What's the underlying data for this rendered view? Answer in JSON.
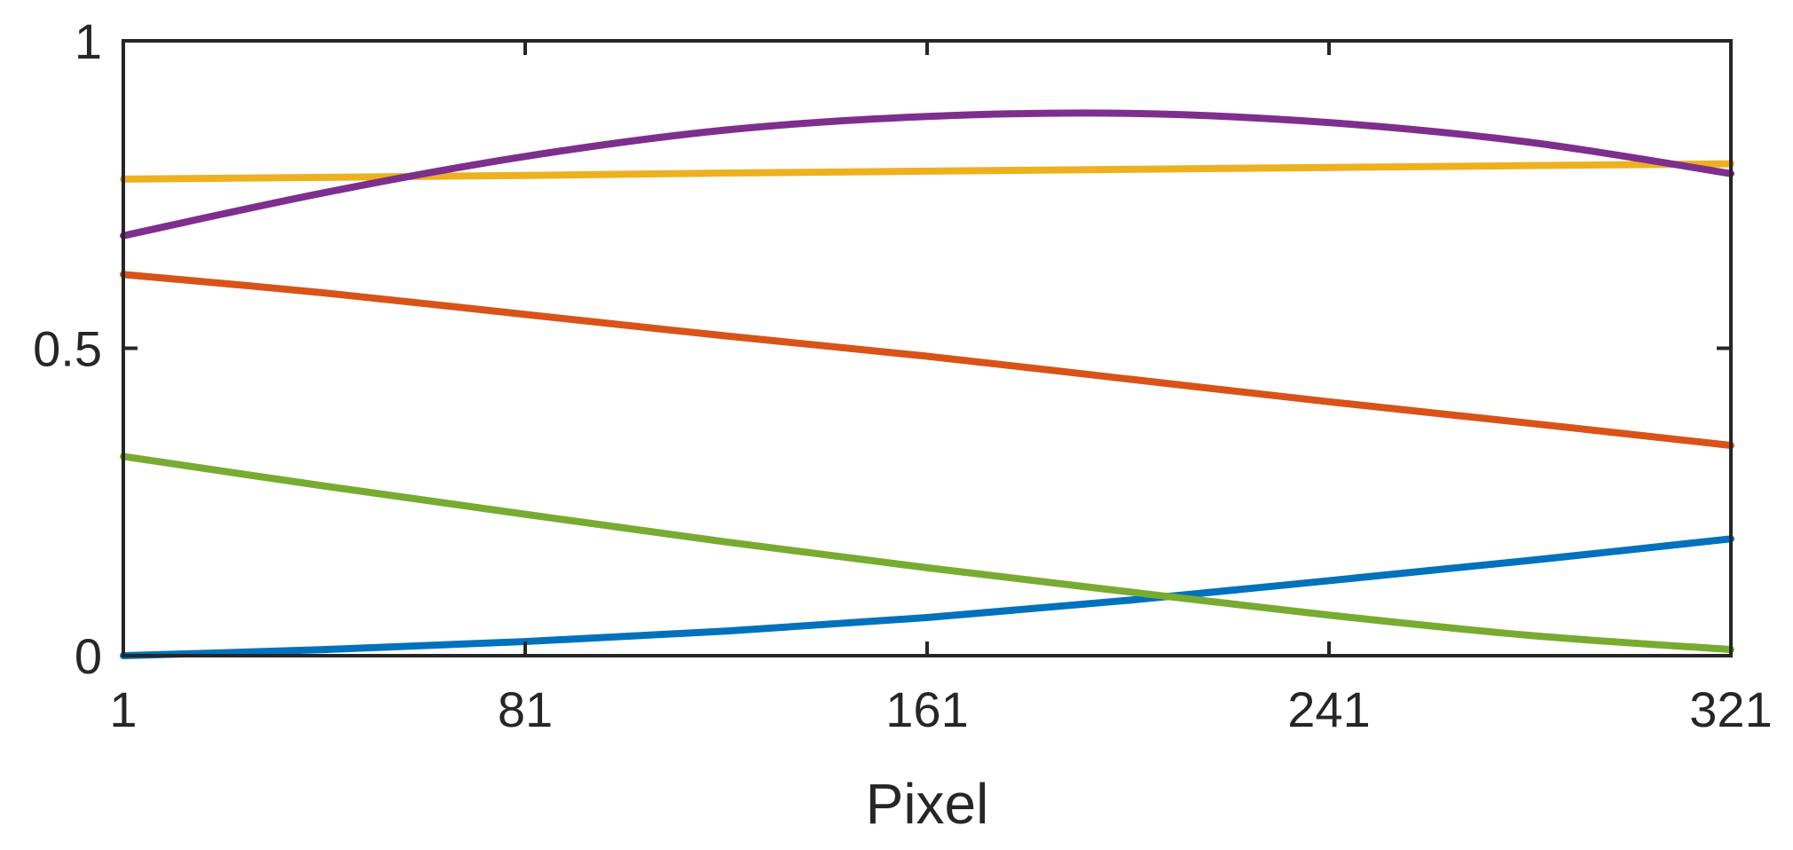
{
  "chart_data": {
    "type": "line",
    "title": "",
    "xlabel": "Pixel",
    "ylabel": "",
    "xlim": [
      1,
      321
    ],
    "ylim": [
      0,
      1
    ],
    "xticks": [
      1,
      81,
      161,
      241,
      321
    ],
    "xtick_labels": [
      "1",
      "81",
      "161",
      "241",
      "321"
    ],
    "yticks": [
      0,
      0.5,
      1
    ],
    "ytick_labels": [
      "0",
      "0.5",
      "1"
    ],
    "grid": false,
    "legend": "none",
    "x": [
      1,
      41,
      81,
      121,
      161,
      201,
      241,
      281,
      321
    ],
    "series": [
      {
        "color": "#0072BD",
        "values": [
          0.0,
          0.01,
          0.023,
          0.04,
          0.062,
          0.09,
          0.122,
          0.155,
          0.19
        ]
      },
      {
        "color": "#D95319",
        "values": [
          0.62,
          0.59,
          0.555,
          0.52,
          0.487,
          0.45,
          0.413,
          0.378,
          0.342
        ]
      },
      {
        "color": "#EDB120",
        "values": [
          0.775,
          0.778,
          0.781,
          0.785,
          0.788,
          0.791,
          0.794,
          0.797,
          0.8
        ]
      },
      {
        "color": "#7E2F8E",
        "values": [
          0.683,
          0.753,
          0.812,
          0.855,
          0.877,
          0.882,
          0.867,
          0.835,
          0.784
        ]
      },
      {
        "color": "#77AC30",
        "values": [
          0.324,
          0.276,
          0.23,
          0.185,
          0.143,
          0.104,
          0.066,
          0.033,
          0.01
        ]
      }
    ]
  }
}
